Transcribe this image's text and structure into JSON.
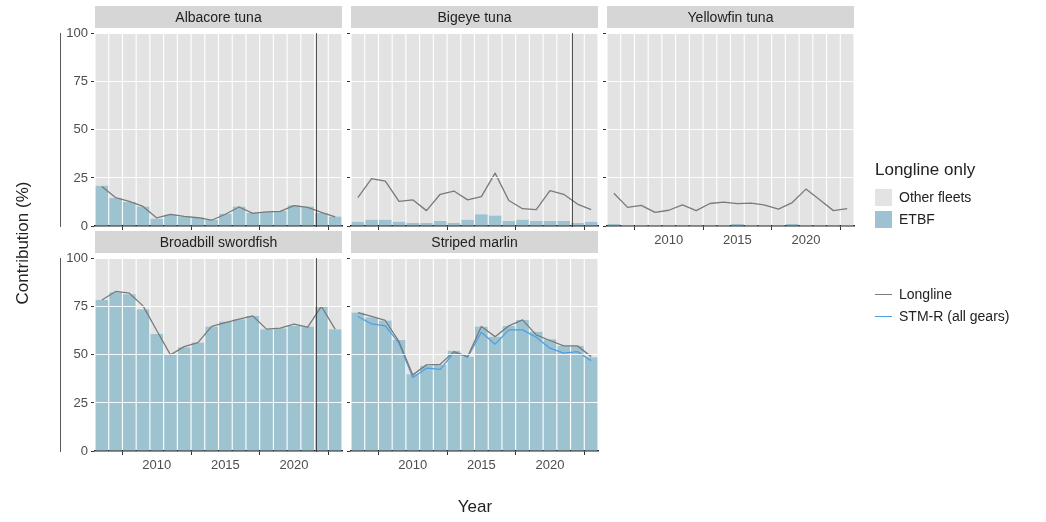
{
  "chart_data": [
    {
      "type": "bar",
      "title": "Albacore tuna",
      "ylabel": "Contribution (%)",
      "stacked": true,
      "grid": "y",
      "tick_labels": "y",
      "legend": "right",
      "legend_title": "Longline only",
      "xlim": [
        2005.5,
        2023.5
      ],
      "xticks": [
        2010,
        2015,
        2020
      ],
      "ylim": [
        0,
        100
      ],
      "yticks": [
        0,
        25,
        50,
        75,
        100
      ],
      "x": [
        2006,
        2007,
        2008,
        2009,
        2010,
        2011,
        2012,
        2013,
        2014,
        2015,
        2016,
        2017,
        2018,
        2019,
        2020,
        2021,
        2022,
        2023
      ],
      "series": [
        {
          "name": "ETBF",
          "color": "#9dc3d0",
          "values": [
            21,
            14.6,
            12.5,
            10.2,
            3.8,
            5.9,
            5,
            4.5,
            3.3,
            6.4,
            10.2,
            6.8,
            7.3,
            7.8,
            10.8,
            10.2,
            6.8,
            5
          ]
        },
        {
          "name": "Other fleets",
          "color": "#e3e3e3",
          "values": [
            79,
            85.4,
            87.5,
            89.8,
            96.2,
            94.1,
            95,
            95.5,
            96.7,
            93.6,
            89.8,
            93.2,
            92.7,
            92.2,
            89.2,
            89.8,
            93.2,
            95
          ]
        },
        {
          "name": "Longline",
          "type": "line",
          "color": "#7a7a7a",
          "values": [
            20.5,
            14.8,
            12.8,
            10.2,
            4.2,
            6.1,
            5,
            4.3,
            3,
            6.1,
            9.9,
            6.6,
            7.3,
            7.6,
            10.6,
            9.7,
            7.1,
            4.7
          ]
        }
      ]
    },
    {
      "type": "bar",
      "title": "Bigeye tuna",
      "stacked": true,
      "grid": "y",
      "tick_labels": false,
      "xlim": [
        2005.5,
        2023.5
      ],
      "xticks": [
        2010,
        2015,
        2020
      ],
      "ylim": [
        0,
        100
      ],
      "yticks": [
        0,
        25,
        50,
        75,
        100
      ],
      "x": [
        2006,
        2007,
        2008,
        2009,
        2010,
        2011,
        2012,
        2013,
        2014,
        2015,
        2016,
        2017,
        2018,
        2019,
        2020,
        2021,
        2022,
        2023
      ],
      "series": [
        {
          "color": "#9dc3d0",
          "values": [
            2.2,
            3.2,
            3.2,
            2.2,
            1.5,
            1.5,
            2.6,
            1.5,
            3.2,
            6.1,
            5.4,
            2.6,
            3.2,
            2.6,
            2.6,
            2.6,
            1.5,
            2.2
          ]
        },
        {
          "color": "#e3e3e3",
          "values": [
            97.8,
            96.8,
            96.8,
            97.8,
            98.5,
            98.5,
            97.4,
            98.5,
            96.8,
            93.9,
            94.6,
            97.4,
            96.8,
            97.4,
            97.4,
            97.4,
            98.5,
            97.8
          ]
        },
        {
          "type": "line",
          "color": "#7a7a7a",
          "values": [
            14.8,
            24.7,
            23.3,
            12.8,
            13.6,
            8,
            16.5,
            18.2,
            13.6,
            15.3,
            27.5,
            13.3,
            9,
            8.5,
            18.4,
            16.5,
            11.4,
            8.5
          ]
        }
      ]
    },
    {
      "type": "bar",
      "title": "Yellowfin tuna",
      "stacked": true,
      "grid": "y",
      "tick_labels": "x",
      "xlim": [
        2005.5,
        2023.5
      ],
      "xticks": [
        2010,
        2015,
        2020
      ],
      "ylim": [
        0,
        100
      ],
      "yticks": [
        0,
        25,
        50,
        75,
        100
      ],
      "x": [
        2006,
        2007,
        2008,
        2009,
        2010,
        2011,
        2012,
        2013,
        2014,
        2015,
        2016,
        2017,
        2018,
        2019,
        2020,
        2021,
        2022,
        2023
      ],
      "series": [
        {
          "color": "#9dc3d0",
          "values": [
            1,
            0,
            0,
            0,
            0,
            0,
            0,
            0,
            0,
            1,
            0,
            0,
            0,
            1,
            0,
            0,
            0,
            0
          ]
        },
        {
          "color": "#e3e3e3",
          "values": [
            99,
            100,
            100,
            100,
            100,
            100,
            100,
            100,
            100,
            99,
            100,
            100,
            100,
            99,
            100,
            100,
            100,
            100
          ]
        },
        {
          "type": "line",
          "color": "#7a7a7a",
          "values": [
            17,
            9.7,
            10.7,
            7.1,
            8.2,
            11,
            8,
            11.7,
            12.4,
            11.6,
            11.9,
            10.9,
            8.8,
            12.2,
            19.2,
            13.6,
            8,
            9
          ]
        }
      ]
    },
    {
      "type": "bar",
      "title": "Broadbill swordfish",
      "stacked": true,
      "grid": "y",
      "xlim": [
        2005.5,
        2023.5
      ],
      "xticks": [
        2010,
        2015,
        2020
      ],
      "ylim": [
        0,
        100
      ],
      "yticks": [
        0,
        25,
        50,
        75,
        100
      ],
      "x": [
        2006,
        2007,
        2008,
        2009,
        2010,
        2011,
        2012,
        2013,
        2014,
        2015,
        2016,
        2017,
        2018,
        2019,
        2020,
        2021,
        2022,
        2023
      ],
      "series": [
        {
          "color": "#9dc3d0",
          "values": [
            78.6,
            82.6,
            81.6,
            73.8,
            60.9,
            50,
            54,
            56.4,
            64.8,
            67.4,
            68.6,
            70.3,
            63.4,
            63.9,
            65.1,
            64.8,
            75.2,
            63.4
          ]
        },
        {
          "color": "#e3e3e3",
          "values": [
            21.4,
            17.4,
            18.4,
            26.2,
            39.1,
            50,
            46,
            43.6,
            35.2,
            32.6,
            31.4,
            29.7,
            36.6,
            36.1,
            34.9,
            35.2,
            24.8,
            36.6
          ]
        },
        {
          "type": "line",
          "color": "#7a7a7a",
          "values": [
            78.6,
            83,
            82.1,
            75.5,
            62.7,
            50,
            54.3,
            56.4,
            64.8,
            66.8,
            68.6,
            70.3,
            63.4,
            63.9,
            66,
            64.4,
            75.2,
            63.4
          ]
        }
      ]
    },
    {
      "type": "bar",
      "title": "Striped marlin",
      "xlabel": "Year",
      "stacked": true,
      "grid": "y",
      "tick_labels": "x",
      "xlim": [
        2005.5,
        2023.5
      ],
      "xticks": [
        2010,
        2015,
        2020
      ],
      "ylim": [
        0,
        100
      ],
      "yticks": [
        0,
        25,
        50,
        75,
        100
      ],
      "x": [
        2006,
        2007,
        2008,
        2009,
        2010,
        2011,
        2012,
        2013,
        2014,
        2015,
        2016,
        2017,
        2018,
        2019,
        2020,
        2021,
        2022,
        2023
      ],
      "series": [
        {
          "color": "#9dc3d0",
          "values": [
            72,
            69.6,
            67.9,
            57.8,
            39.9,
            44.3,
            44.8,
            52.1,
            49.1,
            64.8,
            59.5,
            65.1,
            68.2,
            62.1,
            58.2,
            54.7,
            54.7,
            48.8
          ]
        },
        {
          "color": "#e3e3e3",
          "values": [
            28,
            30.4,
            32.1,
            42.2,
            60.1,
            55.7,
            55.2,
            47.9,
            50.9,
            35.2,
            40.5,
            34.9,
            31.8,
            37.9,
            41.8,
            45.3,
            45.3,
            51.2
          ]
        },
        {
          "type": "line",
          "color": "#7a7a7a",
          "values": [
            72,
            70,
            67.9,
            56.9,
            39.6,
            44.8,
            45.1,
            51.7,
            49.1,
            64.8,
            59.5,
            65.1,
            68.2,
            60.4,
            57.5,
            54.7,
            54.7,
            49.1
          ]
        },
        {
          "name": "STM-R (all gears)",
          "type": "line",
          "color": "#4f9fe0",
          "values": [
            70,
            66.1,
            65.1,
            56.1,
            38.2,
            43.1,
            42.5,
            51.2,
            48.8,
            61.8,
            55.6,
            63,
            63,
            59.2,
            53.5,
            50.9,
            51.7,
            47
          ]
        }
      ]
    }
  ]
}
